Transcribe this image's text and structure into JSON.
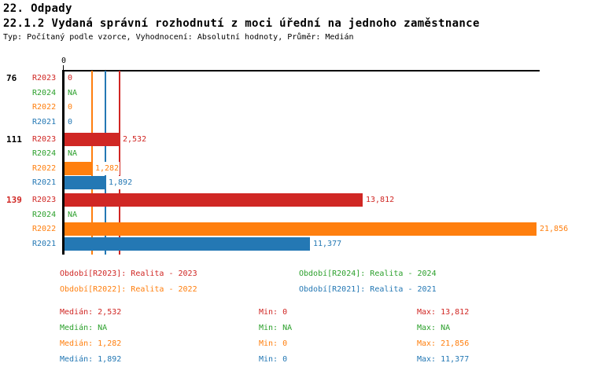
{
  "header": {
    "title": "22. Odpady",
    "subtitle": "22.1.2 Vydaná správní rozhodnutí z moci úřední na jednoho zaměstnance",
    "meta": "Typ: Počítaný podle vzorce, Vyhodnocení: Absolutní hodnoty, Průměr: Medián"
  },
  "colors": {
    "red": "#d02724",
    "green": "#2ca02c",
    "orange": "#ff7f0e",
    "blue": "#2478b4",
    "axis": "#000000",
    "highlight_group": "#d02724",
    "normal_group": "#000000"
  },
  "chart_data": {
    "type": "bar",
    "orientation": "horizontal",
    "title": "22.1.2 Vydaná správní rozhodnutí z moci úřední na jednoho zaměstnance",
    "axis": {
      "tick_label": "0",
      "min_value": 0,
      "max_value": 21856,
      "grid": false
    },
    "categories": [
      "76",
      "111",
      "139"
    ],
    "series": [
      {
        "id": "R2023",
        "name": "Realita - 2023",
        "color_key": "red",
        "values": [
          0,
          2532,
          13812
        ],
        "median": 2532,
        "min": 0,
        "max": 13812
      },
      {
        "id": "R2024",
        "name": "Realita - 2024",
        "color_key": "green",
        "values": [
          null,
          null,
          null
        ],
        "median": null,
        "min": null,
        "max": null
      },
      {
        "id": "R2022",
        "name": "Realita - 2022",
        "color_key": "orange",
        "values": [
          0,
          1282,
          21856
        ],
        "median": 1282,
        "min": 0,
        "max": 21856
      },
      {
        "id": "R2021",
        "name": "Realita - 2021",
        "color_key": "blue",
        "values": [
          0,
          1892,
          11377
        ],
        "median": 1892,
        "min": 0,
        "max": 11377
      }
    ],
    "median_lines": [
      {
        "series": "R2022",
        "value": 1282,
        "color_key": "orange"
      },
      {
        "series": "R2021",
        "value": 1892,
        "color_key": "blue"
      },
      {
        "series": "R2023",
        "value": 2532,
        "color_key": "red"
      }
    ],
    "groups": [
      {
        "label": "76",
        "highlighted": false,
        "rows": [
          {
            "series": "R2023",
            "value": 0,
            "display": "0",
            "color_key": "red"
          },
          {
            "series": "R2024",
            "value": null,
            "display": "NA",
            "color_key": "green"
          },
          {
            "series": "R2022",
            "value": 0,
            "display": "0",
            "color_key": "orange"
          },
          {
            "series": "R2021",
            "value": 0,
            "display": "0",
            "color_key": "blue"
          }
        ]
      },
      {
        "label": "111",
        "highlighted": false,
        "rows": [
          {
            "series": "R2023",
            "value": 2532,
            "display": "2,532",
            "color_key": "red"
          },
          {
            "series": "R2024",
            "value": null,
            "display": "NA",
            "color_key": "green"
          },
          {
            "series": "R2022",
            "value": 1282,
            "display": "1,282",
            "color_key": "orange"
          },
          {
            "series": "R2021",
            "value": 1892,
            "display": "1,892",
            "color_key": "blue"
          }
        ]
      },
      {
        "label": "139",
        "highlighted": true,
        "rows": [
          {
            "series": "R2023",
            "value": 13812,
            "display": "13,812",
            "color_key": "red"
          },
          {
            "series": "R2024",
            "value": null,
            "display": "NA",
            "color_key": "green"
          },
          {
            "series": "R2022",
            "value": 21856,
            "display": "21,856",
            "color_key": "orange"
          },
          {
            "series": "R2021",
            "value": 11377,
            "display": "11,377",
            "color_key": "blue"
          }
        ]
      }
    ]
  },
  "legend": {
    "items": [
      {
        "id": "R2023",
        "label": "Období[R2023]: Realita - 2023",
        "color_key": "red"
      },
      {
        "id": "R2024",
        "label": "Období[R2024]: Realita - 2024",
        "color_key": "green"
      },
      {
        "id": "R2022",
        "label": "Období[R2022]: Realita - 2022",
        "color_key": "orange"
      },
      {
        "id": "R2021",
        "label": "Období[R2021]: Realita - 2021",
        "color_key": "blue"
      }
    ]
  },
  "stats": {
    "rows": [
      {
        "id": "R2023",
        "color_key": "red",
        "median": "Medián: 2,532",
        "min": "Min: 0",
        "max": "Max: 13,812"
      },
      {
        "id": "R2024",
        "color_key": "green",
        "median": "Medián: NA",
        "min": "Min: NA",
        "max": "Max: NA"
      },
      {
        "id": "R2022",
        "color_key": "orange",
        "median": "Medián: 1,282",
        "min": "Min: 0",
        "max": "Max: 21,856"
      },
      {
        "id": "R2021",
        "color_key": "blue",
        "median": "Medián: 1,892",
        "min": "Min: 0",
        "max": "Max: 11,377"
      }
    ]
  }
}
